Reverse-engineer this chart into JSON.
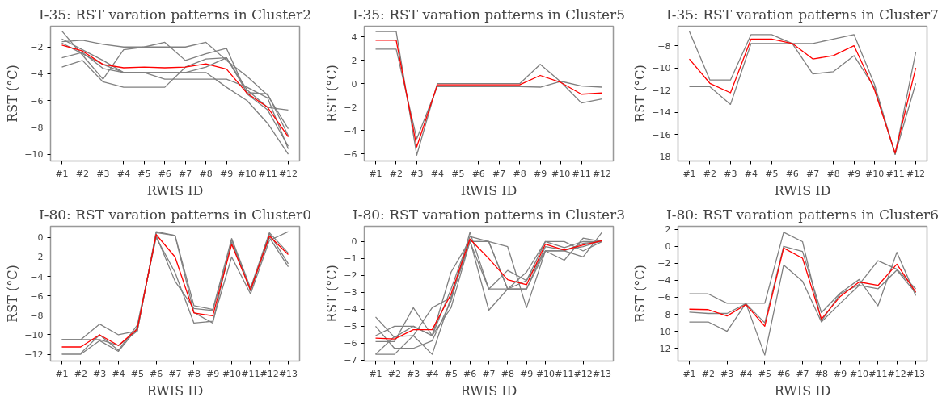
{
  "chart_data": [
    {
      "type": "line",
      "title": "I-35: RST varation patterns in Cluster2",
      "xlabel": "RWIS ID",
      "ylabel": "RST (°C)",
      "categories": [
        "#1",
        "#2",
        "#3",
        "#4",
        "#5",
        "#6",
        "#7",
        "#8",
        "#9",
        "#10",
        "#11",
        "#12"
      ],
      "ylim": [
        -10.5,
        -0.45
      ],
      "yticks": [
        -10,
        -8,
        -6,
        -4,
        -2
      ],
      "series": [
        {
          "color": "#808080",
          "values": [
            -0.8,
            -2.6,
            -4.4,
            -2.2,
            -2.0,
            -1.65,
            -3.0,
            -2.5,
            -2.1,
            -5.5,
            -6.7,
            -9.4
          ]
        },
        {
          "color": "#808080",
          "values": [
            -1.6,
            -1.5,
            -1.8,
            -2.0,
            -2.0,
            -2.0,
            -2.0,
            -1.65,
            -3.0,
            -4.2,
            -5.6,
            -8.1
          ]
        },
        {
          "color": "#808080",
          "values": [
            -1.4,
            -2.2,
            -3.0,
            -3.9,
            -3.9,
            -4.4,
            -4.4,
            -4.4,
            -4.4,
            -5.0,
            -5.8,
            -9.6
          ]
        },
        {
          "color": "#808080",
          "values": [
            -2.8,
            -2.4,
            -3.6,
            -3.9,
            -3.9,
            -3.9,
            -3.9,
            -3.9,
            -5.0,
            -6.0,
            -7.7,
            -10.0
          ]
        },
        {
          "color": "#808080",
          "values": [
            -3.5,
            -3.0,
            -4.6,
            -5.0,
            -5.0,
            -5.0,
            -3.5,
            -2.9,
            -2.8,
            -5.2,
            -6.5,
            -6.7
          ]
        },
        {
          "color": "#808080",
          "values": [
            -1.7,
            -2.5,
            -3.3,
            -3.9,
            -3.9,
            -3.9,
            -3.9,
            -3.5,
            -2.8,
            -5.4,
            -5.5,
            -8.6
          ]
        },
        {
          "color": "#ff0000",
          "values": [
            -1.85,
            -2.3,
            -3.3,
            -3.55,
            -3.5,
            -3.55,
            -3.5,
            -3.25,
            -3.65,
            -5.45,
            -6.5,
            -8.7
          ]
        }
      ]
    },
    {
      "type": "line",
      "title": "I-35: RST varation patterns in Cluster5",
      "xlabel": "RWIS ID",
      "ylabel": "RST (°C)",
      "categories": [
        "#1",
        "#2",
        "#3",
        "#4",
        "#5",
        "#6",
        "#7",
        "#8",
        "#9",
        "#10",
        "#11",
        "#12"
      ],
      "ylim": [
        -6.6,
        4.9
      ],
      "yticks": [
        -6,
        -4,
        -2,
        0,
        2,
        4
      ],
      "series": [
        {
          "color": "#808080",
          "values": [
            4.45,
            4.45,
            -6.1,
            0,
            0,
            0,
            0,
            0,
            1.65,
            0.15,
            -1.65,
            -1.3
          ]
        },
        {
          "color": "#808080",
          "values": [
            2.95,
            2.95,
            -4.7,
            -0.25,
            -0.25,
            -0.25,
            -0.25,
            -0.25,
            -0.3,
            0.2,
            -0.2,
            -0.3
          ]
        },
        {
          "color": "#ff0000",
          "values": [
            3.7,
            3.7,
            -5.4,
            -0.1,
            -0.1,
            -0.1,
            -0.1,
            -0.1,
            0.7,
            0.1,
            -0.9,
            -0.8
          ]
        }
      ]
    },
    {
      "type": "line",
      "title": "I-35: RST varation patterns in Cluster7",
      "xlabel": "RWIS ID",
      "ylabel": "RST (°C)",
      "categories": [
        "#1",
        "#2",
        "#3",
        "#4",
        "#5",
        "#6",
        "#7",
        "#8",
        "#9",
        "#10",
        "#11",
        "#12"
      ],
      "ylim": [
        -18.4,
        -6.25
      ],
      "yticks": [
        -18,
        -16,
        -14,
        -12,
        -10,
        -8
      ],
      "series": [
        {
          "color": "#808080",
          "values": [
            -6.7,
            -11.1,
            -11.1,
            -7.0,
            -7.0,
            -7.8,
            -7.8,
            -7.4,
            -7.0,
            -11.5,
            -17.8,
            -8.6
          ]
        },
        {
          "color": "#808080",
          "values": [
            -11.7,
            -11.7,
            -13.3,
            -7.8,
            -7.8,
            -7.8,
            -10.55,
            -10.35,
            -8.9,
            -11.8,
            -17.8,
            -11.4
          ]
        },
        {
          "color": "#ff0000",
          "values": [
            -9.2,
            -11.4,
            -12.25,
            -7.4,
            -7.4,
            -7.8,
            -9.2,
            -8.9,
            -8.0,
            -12.0,
            -17.7,
            -10.0
          ]
        }
      ]
    },
    {
      "type": "line",
      "title": "I-80: RST varation patterns in Cluster0",
      "xlabel": "RWIS ID",
      "ylabel": "RST (°C)",
      "categories": [
        "#1",
        "#2",
        "#3",
        "#4",
        "#5",
        "#6",
        "#7",
        "#8",
        "#9",
        "#10",
        "#11",
        "#12",
        "#13"
      ],
      "ylim": [
        -12.7,
        1.15
      ],
      "yticks": [
        -12,
        -10,
        -8,
        -6,
        -4,
        -2,
        0
      ],
      "series": [
        {
          "color": "#808080",
          "values": [
            -10.5,
            -10.5,
            -8.9,
            -10.0,
            -9.6,
            0.5,
            0.2,
            -7.0,
            -7.4,
            -0.1,
            -5.2,
            0.5,
            -1.6
          ]
        },
        {
          "color": "#808080",
          "values": [
            -10.5,
            -10.5,
            -10.5,
            -11.1,
            -9.6,
            0.6,
            0.2,
            -7.7,
            -8.8,
            -0.2,
            -5.5,
            0.4,
            -2.7
          ]
        },
        {
          "color": "#808080",
          "values": [
            -11.9,
            -11.9,
            -10.0,
            -11.6,
            -9.0,
            0.0,
            -3.6,
            -8.8,
            -8.6,
            -2.0,
            -5.8,
            -0.3,
            0.6
          ]
        },
        {
          "color": "#808080",
          "values": [
            -12.0,
            -12.0,
            -10.6,
            -11.7,
            -9.3,
            0.2,
            -4.5,
            -7.3,
            -7.5,
            -0.5,
            -5.3,
            0.0,
            -3.0
          ]
        },
        {
          "color": "#ff0000",
          "values": [
            -11.25,
            -11.25,
            -10.0,
            -11.1,
            -9.4,
            0.3,
            -2.0,
            -7.75,
            -8.05,
            -0.7,
            -5.4,
            0.15,
            -1.75
          ]
        }
      ]
    },
    {
      "type": "line",
      "title": "I-80: RST varation patterns in Cluster3",
      "xlabel": "RWIS ID",
      "ylabel": "RST (°C)",
      "categories": [
        "#1",
        "#2",
        "#3",
        "#4",
        "#5",
        "#6",
        "#7",
        "#8",
        "#9",
        "#10",
        "#11",
        "#12",
        "#13"
      ],
      "ylim": [
        -7.05,
        0.9
      ],
      "yticks": [
        -7,
        -6,
        -5,
        -4,
        -3,
        -2,
        -1,
        0
      ],
      "series": [
        {
          "color": "#808080",
          "values": [
            -4.45,
            -5.65,
            -5.0,
            -5.55,
            -3.9,
            0.0,
            0.0,
            -0.3,
            -3.9,
            -0.55,
            -0.55,
            -0.9,
            0.55
          ]
        },
        {
          "color": "#808080",
          "values": [
            -5.0,
            -6.3,
            -6.3,
            -5.85,
            -3.5,
            0.55,
            -2.8,
            -1.7,
            -2.3,
            0.0,
            0.0,
            -0.55,
            0.0
          ]
        },
        {
          "color": "#808080",
          "values": [
            -5.55,
            -5.0,
            -5.0,
            -5.55,
            -2.8,
            0.3,
            0.0,
            -2.8,
            -2.3,
            -0.55,
            -1.1,
            0.2,
            0.0
          ]
        },
        {
          "color": "#808080",
          "values": [
            -5.9,
            -5.9,
            -3.9,
            -5.55,
            -1.8,
            0.1,
            -4.05,
            -2.8,
            -1.8,
            0.0,
            -0.35,
            0.0,
            0.0
          ]
        },
        {
          "color": "#808080",
          "values": [
            -6.65,
            -6.65,
            -5.55,
            -3.9,
            -3.3,
            0.0,
            0.0,
            -2.8,
            -2.8,
            -0.3,
            -0.5,
            -0.3,
            0.05
          ]
        },
        {
          "color": "#808080",
          "values": [
            -6.65,
            -5.6,
            -5.55,
            -6.65,
            -3.3,
            0.0,
            -2.8,
            -2.8,
            -2.8,
            -0.55,
            -0.55,
            -0.1,
            0.0
          ]
        },
        {
          "color": "#ff0000",
          "values": [
            -5.7,
            -5.75,
            -5.2,
            -5.2,
            -3.1,
            0.15,
            -1.0,
            -2.25,
            -2.55,
            -0.15,
            -0.5,
            -0.2,
            0.05
          ]
        }
      ]
    },
    {
      "type": "line",
      "title": "I-80: RST varation patterns in Cluster6",
      "xlabel": "RWIS ID",
      "ylabel": "RST (°C)",
      "categories": [
        "#1",
        "#2",
        "#3",
        "#4",
        "#5",
        "#6",
        "#7",
        "#8",
        "#9",
        "#10",
        "#11",
        "#12",
        "#13"
      ],
      "ylim": [
        -13.5,
        2.35
      ],
      "yticks": [
        -12,
        -10,
        -8,
        -6,
        -4,
        -2,
        0,
        2
      ],
      "series": [
        {
          "color": "#808080",
          "values": [
            -5.6,
            -5.6,
            -6.7,
            -6.7,
            -6.7,
            1.65,
            0.55,
            -8.8,
            -5.6,
            -4.5,
            -1.7,
            -2.7,
            -5.0
          ]
        },
        {
          "color": "#808080",
          "values": [
            -7.75,
            -7.9,
            -7.9,
            -6.75,
            -9.0,
            0.0,
            -0.6,
            -7.8,
            -5.5,
            -3.9,
            -7.0,
            -0.7,
            -5.8
          ]
        },
        {
          "color": "#808080",
          "values": [
            -8.9,
            -8.9,
            -10.0,
            -6.7,
            -12.8,
            -2.2,
            -4.1,
            -8.9,
            -6.7,
            -4.6,
            -5.0,
            -2.8,
            -5.5
          ]
        },
        {
          "color": "#ff0000",
          "values": [
            -7.4,
            -7.45,
            -8.2,
            -6.85,
            -9.4,
            -0.2,
            -1.4,
            -8.55,
            -5.9,
            -4.2,
            -4.6,
            -2.1,
            -5.4
          ]
        }
      ]
    }
  ]
}
